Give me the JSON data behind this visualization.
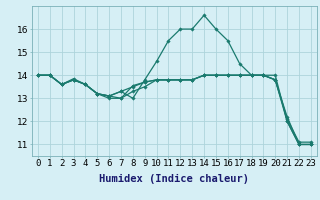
{
  "series": [
    {
      "x": [
        0,
        1,
        2,
        3,
        4,
        5,
        6,
        7,
        8,
        9,
        10,
        11,
        12,
        13,
        14,
        15,
        16,
        17,
        18,
        19,
        20,
        21,
        22,
        23
      ],
      "y": [
        14.0,
        14.0,
        13.6,
        13.85,
        13.6,
        13.2,
        13.1,
        13.0,
        13.55,
        13.7,
        13.8,
        13.8,
        13.8,
        13.8,
        14.0,
        14.0,
        14.0,
        14.0,
        14.0,
        14.0,
        13.8,
        12.0,
        11.0,
        11.0
      ]
    },
    {
      "x": [
        0,
        1,
        2,
        3,
        4,
        5,
        6,
        7,
        8,
        9,
        10,
        11,
        12,
        13,
        14,
        15,
        16,
        17,
        18,
        19,
        20,
        21,
        22,
        23
      ],
      "y": [
        14.0,
        14.0,
        13.6,
        13.8,
        13.6,
        13.2,
        13.1,
        13.3,
        13.5,
        13.7,
        13.8,
        13.8,
        13.8,
        13.8,
        14.0,
        14.0,
        14.0,
        14.0,
        14.0,
        14.0,
        13.8,
        12.1,
        11.1,
        11.1
      ]
    },
    {
      "x": [
        0,
        1,
        2,
        3,
        4,
        5,
        6,
        7,
        8,
        9,
        10,
        11,
        12,
        13,
        14,
        15,
        16,
        17,
        18,
        19,
        20,
        21,
        22,
        23
      ],
      "y": [
        14.0,
        14.0,
        13.6,
        13.8,
        13.6,
        13.2,
        13.1,
        13.3,
        13.0,
        13.8,
        14.6,
        15.5,
        16.0,
        16.0,
        16.6,
        16.0,
        15.5,
        14.5,
        14.0,
        14.0,
        14.0,
        12.0,
        11.0,
        11.0
      ]
    },
    {
      "x": [
        0,
        1,
        2,
        3,
        4,
        5,
        6,
        7,
        8,
        9,
        10,
        11,
        12,
        13,
        14,
        15,
        16,
        17,
        18,
        19,
        20,
        21,
        22,
        23
      ],
      "y": [
        14.0,
        14.0,
        13.6,
        13.8,
        13.6,
        13.2,
        13.0,
        13.0,
        13.3,
        13.5,
        13.8,
        13.8,
        13.8,
        13.8,
        14.0,
        14.0,
        14.0,
        14.0,
        14.0,
        14.0,
        13.8,
        12.2,
        11.0,
        11.0
      ]
    }
  ],
  "line_color": "#1a7a6e",
  "marker": "D",
  "marker_size": 1.8,
  "xlabel": "Humidex (Indice chaleur)",
  "ylabel": "",
  "xlim": [
    -0.5,
    23.5
  ],
  "ylim": [
    10.5,
    17.0
  ],
  "yticks": [
    11,
    12,
    13,
    14,
    15,
    16
  ],
  "xticks": [
    0,
    1,
    2,
    3,
    4,
    5,
    6,
    7,
    8,
    9,
    10,
    11,
    12,
    13,
    14,
    15,
    16,
    17,
    18,
    19,
    20,
    21,
    22,
    23
  ],
  "xtick_labels": [
    "0",
    "1",
    "2",
    "3",
    "4",
    "5",
    "6",
    "7",
    "8",
    "9",
    "10",
    "11",
    "12",
    "13",
    "14",
    "15",
    "16",
    "17",
    "18",
    "19",
    "20",
    "21",
    "22",
    "23"
  ],
  "bg_color": "#d6eff5",
  "grid_color": "#aed4db",
  "tick_fontsize": 6.5,
  "xlabel_fontsize": 7.5,
  "linewidth": 0.9
}
